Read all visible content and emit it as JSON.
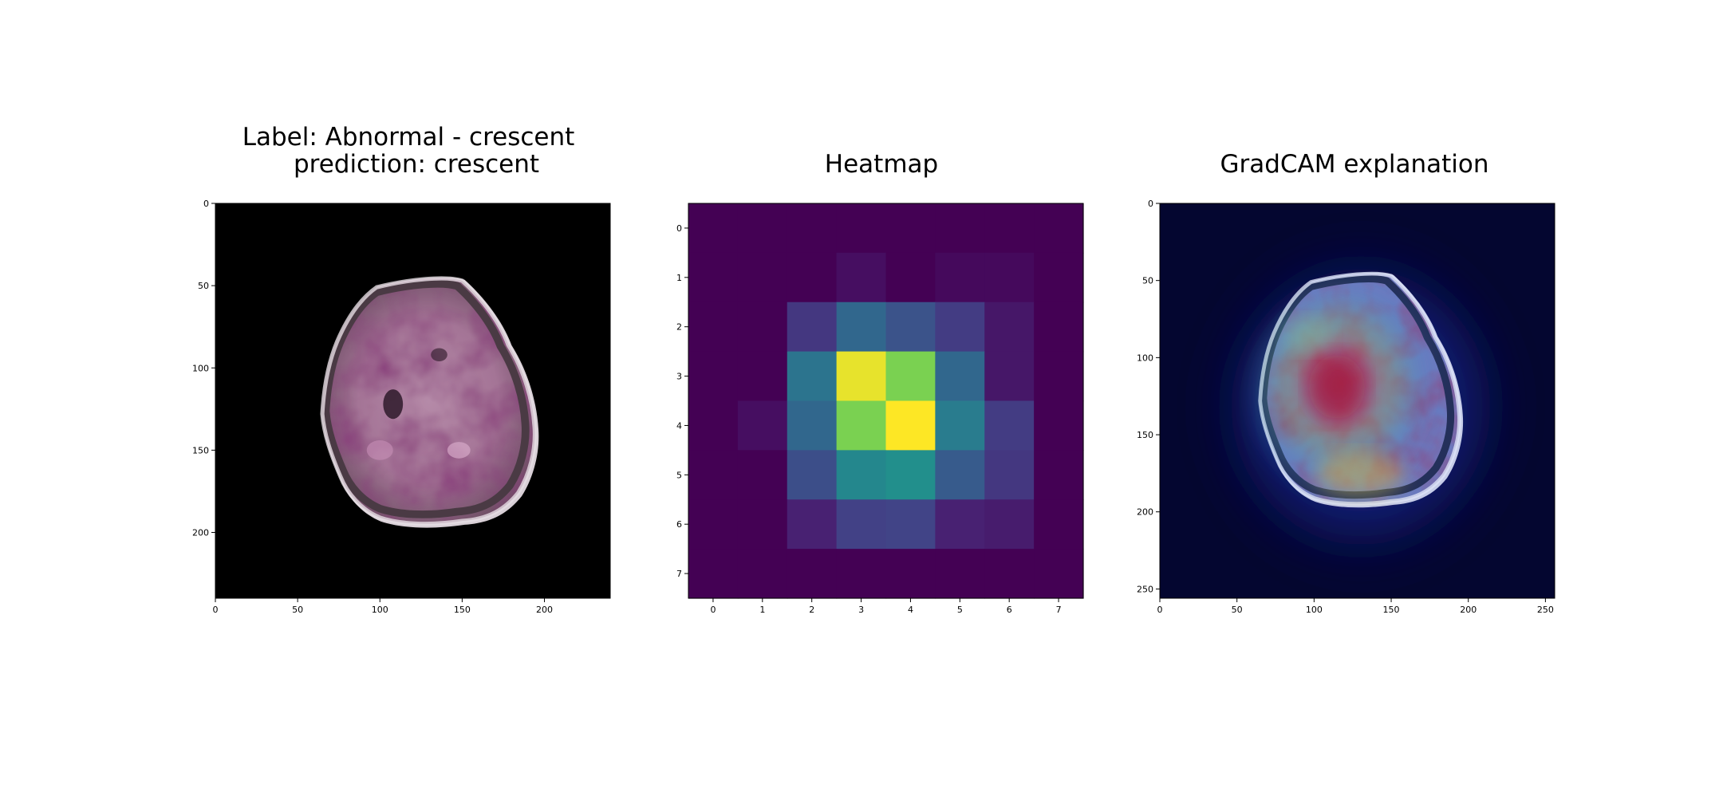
{
  "chart_data": [
    {
      "type": "image",
      "title_line1": "Label: Abnormal - crescent",
      "title_line2": "prediction: crescent",
      "xlim": [
        0,
        240
      ],
      "ylim": [
        240,
        0
      ],
      "xticks": [
        0,
        50,
        100,
        150,
        200
      ],
      "yticks": [
        0,
        50,
        100,
        150,
        200
      ],
      "content": "glomerulus-photo",
      "background_color": "#000000"
    },
    {
      "type": "heatmap",
      "title": "Heatmap",
      "colormap": "viridis",
      "xlim": [
        -0.5,
        7.5
      ],
      "ylim": [
        7.5,
        -0.5
      ],
      "xticks": [
        0,
        1,
        2,
        3,
        4,
        5,
        6,
        7
      ],
      "yticks": [
        0,
        1,
        2,
        3,
        4,
        5,
        6,
        7
      ],
      "z": [
        [
          0.0,
          0.0,
          0.0,
          0.0,
          0.0,
          0.0,
          0.0,
          0.0
        ],
        [
          0.0,
          0.0,
          0.0,
          0.05,
          0.0,
          0.03,
          0.03,
          0.0
        ],
        [
          0.0,
          0.0,
          0.2,
          0.42,
          0.32,
          0.22,
          0.08,
          0.0
        ],
        [
          0.0,
          0.0,
          0.48,
          0.98,
          0.88,
          0.42,
          0.08,
          0.0
        ],
        [
          0.0,
          0.05,
          0.42,
          0.88,
          1.0,
          0.52,
          0.22,
          0.0
        ],
        [
          0.0,
          0.0,
          0.3,
          0.58,
          0.62,
          0.36,
          0.2,
          0.0
        ],
        [
          0.0,
          0.0,
          0.12,
          0.24,
          0.25,
          0.12,
          0.1,
          0.0
        ],
        [
          0.0,
          0.0,
          0.0,
          0.0,
          0.0,
          0.0,
          0.0,
          0.0
        ]
      ]
    },
    {
      "type": "image",
      "title": "GradCAM explanation",
      "xlim": [
        0,
        256
      ],
      "ylim": [
        256,
        0
      ],
      "xticks": [
        0,
        50,
        100,
        150,
        200,
        250
      ],
      "yticks": [
        0,
        50,
        100,
        150,
        200,
        250
      ],
      "content": "gradcam-overlay",
      "background_color": "#040630"
    }
  ]
}
